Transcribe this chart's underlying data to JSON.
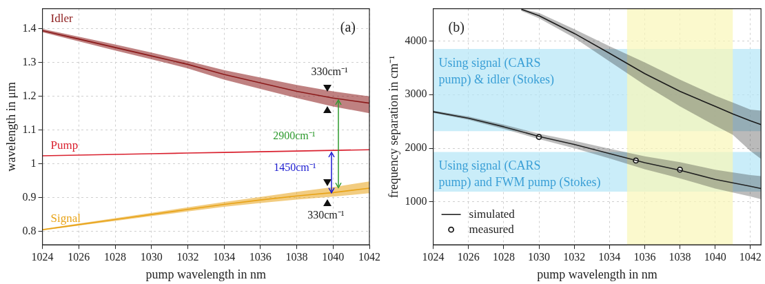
{
  "chart_data": [
    {
      "type": "line",
      "title": "(a)",
      "xlabel": "pump wavelength in nm",
      "ylabel": "wavelength in μm",
      "x": [
        1024,
        1026,
        1028,
        1030,
        1032,
        1034,
        1036,
        1038,
        1040,
        1042
      ],
      "series": [
        {
          "name": "Idler",
          "color": "#8b1a1a",
          "values": [
            1.395,
            1.37,
            1.345,
            1.32,
            1.295,
            1.265,
            1.24,
            1.215,
            1.195,
            1.18
          ],
          "lower": [
            1.39,
            1.363,
            1.336,
            1.31,
            1.283,
            1.25,
            1.222,
            1.195,
            1.17,
            1.15
          ],
          "upper": [
            1.4,
            1.377,
            1.354,
            1.33,
            1.305,
            1.278,
            1.256,
            1.234,
            1.215,
            1.2
          ]
        },
        {
          "name": "Pump",
          "color": "#d9202e",
          "values": [
            1.024,
            1.026,
            1.028,
            1.03,
            1.032,
            1.034,
            1.036,
            1.038,
            1.04,
            1.042
          ]
        },
        {
          "name": "Signal",
          "color": "#e8a317",
          "values": [
            0.805,
            0.82,
            0.835,
            0.85,
            0.865,
            0.88,
            0.893,
            0.905,
            0.915,
            0.928
          ],
          "lower": [
            0.803,
            0.817,
            0.831,
            0.845,
            0.859,
            0.873,
            0.884,
            0.894,
            0.903,
            0.913
          ],
          "upper": [
            0.807,
            0.823,
            0.839,
            0.855,
            0.871,
            0.887,
            0.902,
            0.917,
            0.931,
            0.948
          ]
        }
      ],
      "annotations": [
        "330cm⁻¹",
        "2900cm⁻¹",
        "1450cm⁻¹",
        "330cm⁻¹"
      ],
      "xlim": [
        1024,
        1042
      ],
      "xticks": [
        1024,
        1026,
        1028,
        1030,
        1032,
        1034,
        1036,
        1038,
        1040,
        1042
      ],
      "ylim": [
        0.76,
        1.46
      ],
      "yticks": [
        0.8,
        0.9,
        1,
        1.1,
        1.2,
        1.3,
        1.4
      ],
      "grid": true,
      "legend": false,
      "marker": "none",
      "line_style": "solid"
    },
    {
      "type": "line",
      "title": "(b)",
      "xlabel": "pump wavelength in nm",
      "ylabel": "frequency separation in cm⁻¹",
      "series": [
        {
          "color": "#1a1a1a",
          "x": [
            1029,
            1030,
            1032,
            1034,
            1036,
            1038,
            1040,
            1041,
            1042,
            1042.6
          ],
          "values": [
            4590,
            4470,
            4140,
            3770,
            3390,
            3060,
            2780,
            2640,
            2510,
            2440
          ],
          "lower": [
            4560,
            4420,
            4060,
            3620,
            3180,
            2780,
            2420,
            2250,
            1950,
            1800
          ],
          "upper": [
            4600,
            4520,
            4220,
            3900,
            3600,
            3280,
            2980,
            2850,
            2720,
            2700
          ]
        },
        {
          "name": "simulated",
          "color": "#222222",
          "x": [
            1024,
            1026,
            1028,
            1030,
            1032,
            1034,
            1036,
            1038,
            1040,
            1042,
            1042.6
          ],
          "values": [
            2680,
            2560,
            2400,
            2220,
            2070,
            1900,
            1730,
            1590,
            1420,
            1290,
            1250
          ],
          "lower": [
            2660,
            2530,
            2360,
            2170,
            2000,
            1810,
            1610,
            1440,
            1250,
            1100,
            1050
          ],
          "upper": [
            2700,
            2590,
            2440,
            2270,
            2140,
            1990,
            1850,
            1740,
            1600,
            1500,
            1480
          ]
        },
        {
          "name": "measured",
          "type": "scatter",
          "marker": "circle",
          "color": "#1a1a1a",
          "x": [
            1030,
            1035.5,
            1038
          ],
          "values": [
            2210,
            1770,
            1600
          ]
        }
      ],
      "bands": [
        {
          "axis": "y",
          "from": 2320,
          "to": 3850,
          "label": "Using signal (CARS pump) & idler (Stokes)",
          "color": "#b3e6f7"
        },
        {
          "axis": "y",
          "from": 1190,
          "to": 1930,
          "label": "Using signal (CARS pump) and FWM pump (Stokes)",
          "color": "#b3e6f7"
        },
        {
          "axis": "x",
          "from": 1035,
          "to": 1041,
          "color": "#faf6b8"
        }
      ],
      "xlim": [
        1024,
        1042.6
      ],
      "xticks": [
        1024,
        1026,
        1028,
        1030,
        1032,
        1034,
        1036,
        1038,
        1040,
        1042
      ],
      "ylim": [
        200,
        4600
      ],
      "yticks": [
        1000,
        2000,
        3000,
        4000
      ],
      "grid": true,
      "legend": "bottom left",
      "marker": "none",
      "line_style": "solid"
    }
  ]
}
